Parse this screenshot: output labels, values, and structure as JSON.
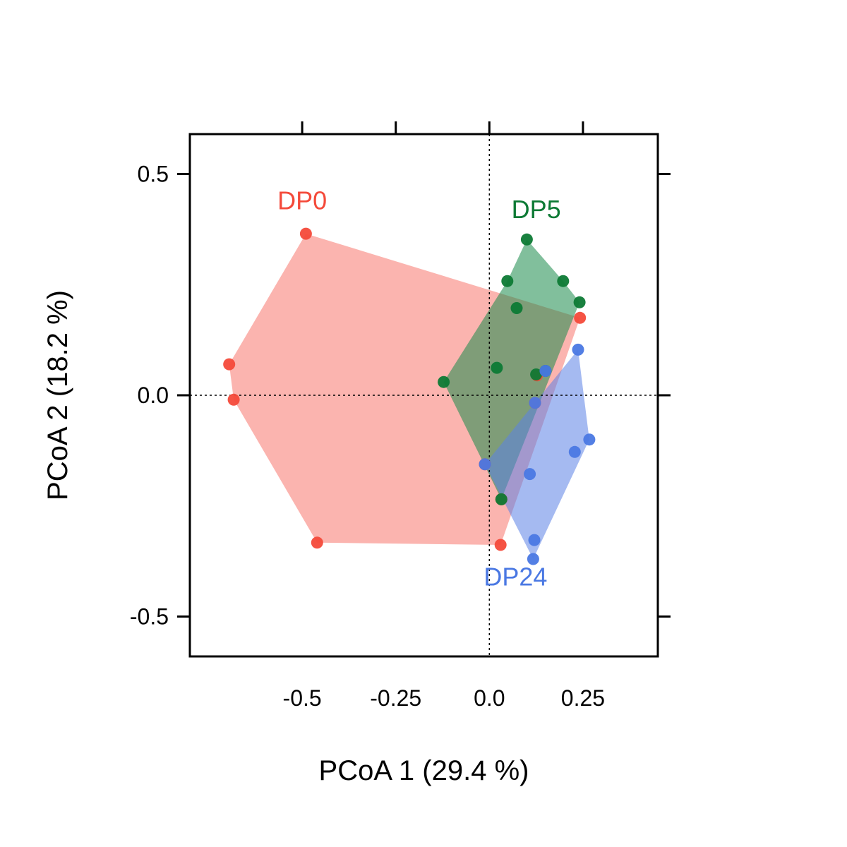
{
  "chart_data": {
    "type": "scatter",
    "xlabel": "PCoA 1 (29.4 %)",
    "ylabel": "PCoA 2 (18.2 %)",
    "xlim": [
      -0.8,
      0.45
    ],
    "ylim": [
      -0.59,
      0.59
    ],
    "x_ticks": [
      {
        "value": -0.5,
        "label": "-0.5"
      },
      {
        "value": -0.25,
        "label": "-0.25"
      },
      {
        "value": 0.0,
        "label": "0.0"
      },
      {
        "value": 0.25,
        "label": "0.25"
      }
    ],
    "y_ticks": [
      {
        "value": 0.5,
        "label": "0.5"
      },
      {
        "value": 0.0,
        "label": "0.0"
      },
      {
        "value": -0.5,
        "label": "-0.5"
      }
    ],
    "reference_lines": {
      "x": 0,
      "y": 0
    },
    "series": [
      {
        "name": "DP0",
        "color": "#f44a3a",
        "fill": "#f8776d",
        "label_pos": [
          -0.5,
          0.42
        ],
        "points": [
          [
            -0.49,
            0.365
          ],
          [
            -0.695,
            0.07
          ],
          [
            -0.683,
            -0.01
          ],
          [
            -0.46,
            -0.333
          ],
          [
            0.03,
            -0.338
          ],
          [
            0.242,
            0.175
          ],
          [
            0.127,
            0.045
          ],
          [
            0.122,
            -0.017
          ],
          [
            0.032,
            -0.235
          ],
          [
            -0.012,
            -0.156
          ]
        ],
        "hull": [
          [
            -0.49,
            0.365
          ],
          [
            0.242,
            0.175
          ],
          [
            0.03,
            -0.338
          ],
          [
            -0.46,
            -0.333
          ],
          [
            -0.683,
            -0.01
          ],
          [
            -0.695,
            0.07
          ]
        ]
      },
      {
        "name": "DP5",
        "color": "#0d7a35",
        "fill": "#1a8a4a",
        "label_pos": [
          0.125,
          0.4
        ],
        "points": [
          [
            0.1,
            0.352
          ],
          [
            0.048,
            0.258
          ],
          [
            0.197,
            0.258
          ],
          [
            0.241,
            0.21
          ],
          [
            0.073,
            0.197
          ],
          [
            0.02,
            0.062
          ],
          [
            0.15,
            0.055
          ],
          [
            -0.122,
            0.03
          ],
          [
            0.125,
            0.047
          ],
          [
            0.032,
            -0.235
          ]
        ],
        "hull": [
          [
            0.1,
            0.352
          ],
          [
            0.197,
            0.258
          ],
          [
            0.241,
            0.21
          ],
          [
            0.032,
            -0.235
          ],
          [
            -0.122,
            0.03
          ],
          [
            0.048,
            0.258
          ]
        ]
      },
      {
        "name": "DP24",
        "color": "#4a78e3",
        "fill": "#5b82e6",
        "label_pos": [
          0.07,
          -0.43
        ],
        "points": [
          [
            0.237,
            0.103
          ],
          [
            0.267,
            -0.1
          ],
          [
            0.228,
            -0.128
          ],
          [
            0.108,
            -0.178
          ],
          [
            0.12,
            -0.327
          ],
          [
            0.117,
            -0.37
          ],
          [
            0.15,
            0.055
          ],
          [
            0.122,
            -0.017
          ],
          [
            -0.012,
            -0.156
          ]
        ],
        "hull": [
          [
            0.237,
            0.103
          ],
          [
            0.267,
            -0.1
          ],
          [
            0.117,
            -0.37
          ],
          [
            -0.012,
            -0.156
          ]
        ]
      }
    ]
  }
}
